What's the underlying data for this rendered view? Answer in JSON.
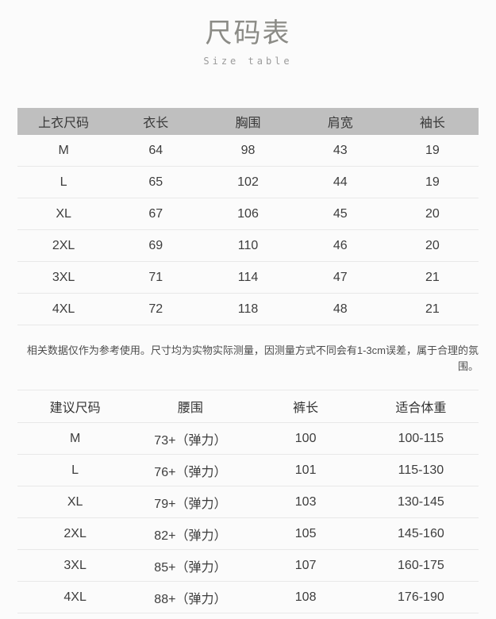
{
  "page": {
    "title": "尺码表",
    "subtitle": "Size table"
  },
  "top_size_table": {
    "headers": [
      "上衣尺码",
      "衣长",
      "胸围",
      "肩宽",
      "袖长"
    ],
    "rows": [
      [
        "M",
        "64",
        "98",
        "43",
        "19"
      ],
      [
        "L",
        "65",
        "102",
        "44",
        "19"
      ],
      [
        "XL",
        "67",
        "106",
        "45",
        "20"
      ],
      [
        "2XL",
        "69",
        "110",
        "46",
        "20"
      ],
      [
        "3XL",
        "71",
        "114",
        "47",
        "21"
      ],
      [
        "4XL",
        "72",
        "118",
        "48",
        "21"
      ]
    ]
  },
  "note": "相关数据仅作为参考使用。尺寸均为实物实际测量，因测量方式不同会有1-3cm误差，属于合理的氛围。",
  "suggested_size_table": {
    "headers": [
      "建议尺码",
      "腰围",
      "裤长",
      "适合体重"
    ],
    "rows": [
      [
        "M",
        "73+（弹力）",
        "100",
        "100-115"
      ],
      [
        "L",
        "76+（弹力）",
        "101",
        "115-130"
      ],
      [
        "XL",
        "79+（弹力）",
        "103",
        "130-145"
      ],
      [
        "2XL",
        "82+（弹力）",
        "105",
        "145-160"
      ],
      [
        "3XL",
        "85+（弹力）",
        "107",
        "160-175"
      ],
      [
        "4XL",
        "88+（弹力）",
        "108",
        "176-190"
      ]
    ]
  },
  "colors": {
    "page_bg": "#fbfbfb",
    "header_bg": "#bfbfbf",
    "divider": "#e8e8e8",
    "body_text": "#3d3d3d",
    "title_text": "#8b8b86",
    "subtitle_text": "#9b9b9b",
    "note_text": "#4d4d4d"
  }
}
